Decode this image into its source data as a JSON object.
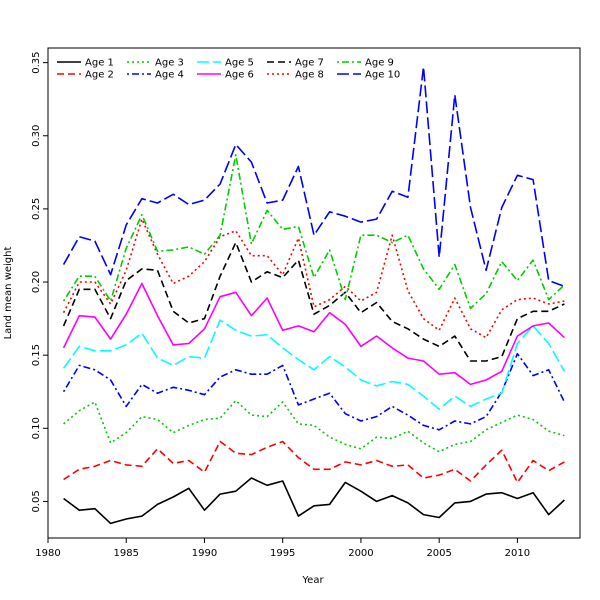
{
  "chart_data": {
    "type": "line",
    "title": "",
    "xlabel": "Year",
    "ylabel": "Land mean weight",
    "xlim": [
      1980,
      2014
    ],
    "ylim": [
      0.025,
      0.36
    ],
    "x_ticks": [
      1980,
      1985,
      1990,
      1995,
      2000,
      2005,
      2010
    ],
    "y_ticks": [
      0.05,
      0.1,
      0.15,
      0.2,
      0.25,
      0.3,
      0.35
    ],
    "y_tick_labels": [
      "0.05",
      "0.10",
      "0.15",
      "0.20",
      "0.25",
      "0.30",
      "0.35"
    ],
    "grid": false,
    "legend_position": "top-left",
    "x": [
      1981,
      1982,
      1983,
      1984,
      1985,
      1986,
      1987,
      1988,
      1989,
      1990,
      1991,
      1992,
      1993,
      1994,
      1995,
      1996,
      1997,
      1998,
      1999,
      2000,
      2001,
      2002,
      2003,
      2004,
      2005,
      2006,
      2007,
      2008,
      2009,
      2010,
      2011,
      2012,
      2013
    ],
    "series": [
      {
        "name": "Age 1",
        "color": "#000000",
        "dash": "solid",
        "values": [
          0.052,
          0.044,
          0.045,
          0.035,
          0.038,
          0.04,
          0.048,
          0.053,
          0.059,
          0.044,
          0.055,
          0.057,
          0.066,
          0.061,
          0.064,
          0.04,
          0.047,
          0.048,
          0.063,
          0.057,
          0.05,
          0.054,
          0.049,
          0.041,
          0.039,
          0.049,
          0.05,
          0.055,
          0.056,
          0.052,
          0.056,
          0.041,
          0.051
        ]
      },
      {
        "name": "Age 2",
        "color": "#ff0000",
        "dash": "dashed",
        "values": [
          0.065,
          0.072,
          0.074,
          0.078,
          0.075,
          0.074,
          0.086,
          0.076,
          0.078,
          0.07,
          0.091,
          0.083,
          0.082,
          0.087,
          0.091,
          0.08,
          0.072,
          0.072,
          0.077,
          0.075,
          0.078,
          0.074,
          0.075,
          0.066,
          0.068,
          0.072,
          0.064,
          0.075,
          0.085,
          0.063,
          0.078,
          0.071,
          0.077
        ]
      },
      {
        "name": "Age 3",
        "color": "#00cd00",
        "dash": "dotted",
        "values": [
          0.103,
          0.112,
          0.118,
          0.09,
          0.097,
          0.108,
          0.106,
          0.097,
          0.102,
          0.106,
          0.107,
          0.119,
          0.109,
          0.108,
          0.118,
          0.103,
          0.102,
          0.094,
          0.089,
          0.086,
          0.094,
          0.093,
          0.098,
          0.09,
          0.084,
          0.089,
          0.091,
          0.099,
          0.104,
          0.109,
          0.106,
          0.098,
          0.095
        ]
      },
      {
        "name": "Age 4",
        "color": "#0000ff",
        "dash": "dotdash",
        "values": [
          0.125,
          0.143,
          0.14,
          0.133,
          0.115,
          0.13,
          0.124,
          0.128,
          0.126,
          0.123,
          0.135,
          0.14,
          0.137,
          0.137,
          0.143,
          0.116,
          0.12,
          0.124,
          0.11,
          0.105,
          0.108,
          0.115,
          0.109,
          0.102,
          0.099,
          0.105,
          0.103,
          0.108,
          0.125,
          0.151,
          0.136,
          0.14,
          0.118
        ]
      },
      {
        "name": "Age 5",
        "color": "#00ffff",
        "dash": "longdash",
        "values": [
          0.141,
          0.156,
          0.153,
          0.153,
          0.157,
          0.165,
          0.148,
          0.143,
          0.149,
          0.148,
          0.174,
          0.167,
          0.163,
          0.164,
          0.155,
          0.147,
          0.14,
          0.149,
          0.142,
          0.133,
          0.129,
          0.132,
          0.13,
          0.122,
          0.113,
          0.122,
          0.115,
          0.12,
          0.124,
          0.158,
          0.17,
          0.158,
          0.139
        ]
      },
      {
        "name": "Age 6",
        "color": "#ff00ff",
        "dash": "solid",
        "values": [
          0.155,
          0.177,
          0.176,
          0.161,
          0.178,
          0.199,
          0.177,
          0.157,
          0.158,
          0.168,
          0.19,
          0.193,
          0.177,
          0.189,
          0.167,
          0.17,
          0.166,
          0.179,
          0.171,
          0.156,
          0.163,
          0.155,
          0.148,
          0.146,
          0.137,
          0.138,
          0.13,
          0.133,
          0.139,
          0.163,
          0.17,
          0.172,
          0.162
        ]
      },
      {
        "name": "Age 7",
        "color": "#000000",
        "dash": "dashed",
        "values": [
          0.17,
          0.195,
          0.195,
          0.175,
          0.201,
          0.209,
          0.208,
          0.18,
          0.172,
          0.175,
          0.204,
          0.227,
          0.2,
          0.207,
          0.203,
          0.215,
          0.178,
          0.184,
          0.193,
          0.179,
          0.186,
          0.173,
          0.168,
          0.161,
          0.156,
          0.163,
          0.146,
          0.146,
          0.149,
          0.175,
          0.18,
          0.18,
          0.185
        ]
      },
      {
        "name": "Age 8",
        "color": "#ff0000",
        "dash": "dotted",
        "values": [
          0.179,
          0.2,
          0.2,
          0.185,
          0.208,
          0.243,
          0.219,
          0.199,
          0.204,
          0.214,
          0.231,
          0.235,
          0.218,
          0.218,
          0.205,
          0.23,
          0.183,
          0.188,
          0.197,
          0.187,
          0.193,
          0.232,
          0.194,
          0.175,
          0.167,
          0.189,
          0.168,
          0.162,
          0.181,
          0.188,
          0.189,
          0.185,
          0.187
        ]
      },
      {
        "name": "Age 9",
        "color": "#00cd00",
        "dash": "dotdash",
        "values": [
          0.187,
          0.204,
          0.204,
          0.187,
          0.223,
          0.246,
          0.221,
          0.222,
          0.224,
          0.219,
          0.232,
          0.287,
          0.226,
          0.249,
          0.236,
          0.238,
          0.203,
          0.222,
          0.188,
          0.232,
          0.232,
          0.227,
          0.232,
          0.209,
          0.195,
          0.212,
          0.182,
          0.192,
          0.214,
          0.201,
          0.215,
          0.188,
          0.198
        ]
      },
      {
        "name": "Age 10",
        "color": "#0000ff",
        "dash": "longdash",
        "values": [
          0.212,
          0.231,
          0.228,
          0.205,
          0.239,
          0.257,
          0.254,
          0.26,
          0.253,
          0.256,
          0.267,
          0.294,
          0.282,
          0.254,
          0.256,
          0.279,
          0.232,
          0.248,
          0.245,
          0.241,
          0.243,
          0.262,
          0.258,
          0.347,
          0.217,
          0.328,
          0.251,
          0.208,
          0.251,
          0.273,
          0.27,
          0.201,
          0.197
        ]
      }
    ]
  }
}
